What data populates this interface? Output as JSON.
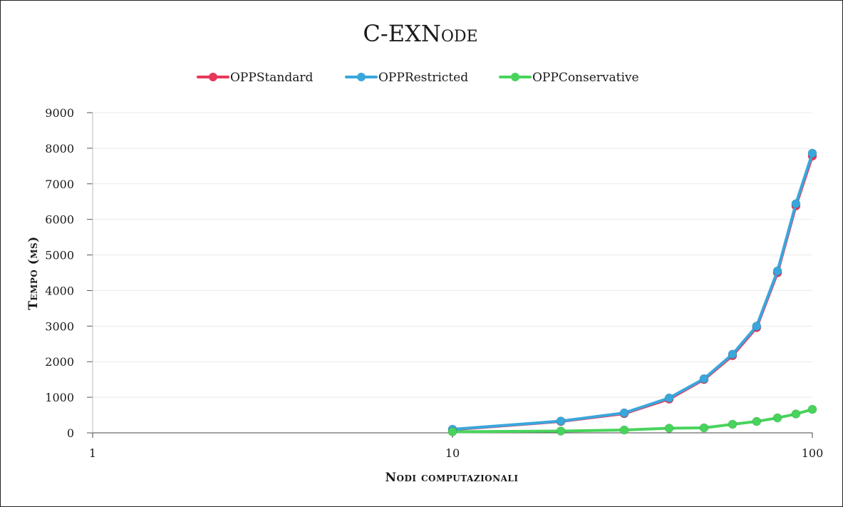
{
  "chart_data": {
    "type": "line",
    "title": "C-EXNode",
    "xlabel": "Nodi computazionali",
    "ylabel": "Tempo (ms)",
    "x_scale": "log",
    "xlim": [
      1,
      100
    ],
    "ylim": [
      0,
      9000
    ],
    "x_ticks": [
      "1",
      "10",
      "100"
    ],
    "y_ticks": [
      "0",
      "1000",
      "2000",
      "3000",
      "4000",
      "5000",
      "6000",
      "7000",
      "8000",
      "9000"
    ],
    "grid": "horizontal",
    "legend_position": "top",
    "x": [
      10,
      20,
      30,
      40,
      50,
      60,
      70,
      80,
      90,
      100
    ],
    "series": [
      {
        "name": "OPPStandard",
        "color": "#e8375a",
        "values": [
          90,
          320,
          540,
          950,
          1500,
          2170,
          2960,
          4500,
          6380,
          7780
        ]
      },
      {
        "name": "OPPRestricted",
        "color": "#3aa7dc",
        "values": [
          100,
          330,
          560,
          980,
          1520,
          2210,
          3000,
          4550,
          6440,
          7860
        ]
      },
      {
        "name": "OPPConservative",
        "color": "#48d45c",
        "values": [
          30,
          50,
          80,
          130,
          140,
          240,
          320,
          420,
          530,
          660
        ]
      }
    ]
  }
}
